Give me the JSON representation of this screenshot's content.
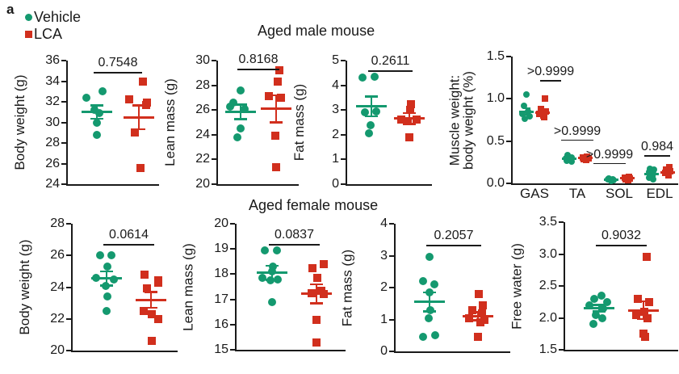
{
  "panel_label": "a",
  "legend": {
    "items": [
      {
        "label": "Vehicle",
        "marker": "circle",
        "color": "#14996f"
      },
      {
        "label": "LCA",
        "marker": "square",
        "color": "#d12f1d"
      }
    ]
  },
  "sections": [
    {
      "title": "Aged male mouse"
    },
    {
      "title": "Aged female mouse"
    }
  ],
  "colors": {
    "vehicle": "#14996f",
    "lca": "#d12f1d",
    "axis": "#1a1a1a"
  },
  "chart_data": [
    {
      "id": "male-body-weight",
      "type": "scatter",
      "section": "Aged male mouse",
      "title": "",
      "xlabel": "",
      "ylabel": "Body weight (g)",
      "ylim": [
        24,
        36
      ],
      "yticks": [
        "24",
        "26",
        "28",
        "30",
        "32",
        "34",
        "36"
      ],
      "p_value": "0.7548",
      "series": [
        {
          "name": "Vehicle",
          "values": [
            32.4,
            33.0,
            31.2,
            30.9,
            30.0,
            28.8
          ],
          "dx": [
            -13,
            7,
            -3,
            3,
            0,
            0
          ],
          "mean": 31.0,
          "sem": 0.65
        },
        {
          "name": "LCA",
          "values": [
            34.0,
            32.2,
            31.9,
            31.7,
            29.0,
            25.6
          ],
          "dx": [
            5,
            -12,
            10,
            9,
            -5,
            2
          ],
          "mean": 30.5,
          "sem": 1.15
        }
      ]
    },
    {
      "id": "male-lean-mass",
      "type": "scatter",
      "section": "Aged male mouse",
      "title": "",
      "xlabel": "",
      "ylabel": "Lean mass (g)",
      "ylim": [
        20,
        30
      ],
      "yticks": [
        "20",
        "22",
        "24",
        "26",
        "28",
        "30"
      ],
      "p_value": "0.8168",
      "series": [
        {
          "name": "Vehicle",
          "values": [
            27.6,
            26.6,
            26.3,
            26.1,
            24.5,
            23.8
          ],
          "dx": [
            0,
            -9,
            -13,
            5,
            0,
            -4
          ],
          "mean": 25.85,
          "sem": 0.6
        },
        {
          "name": "LCA",
          "values": [
            29.2,
            28.3,
            27.1,
            27.0,
            23.9,
            21.4
          ],
          "dx": [
            4,
            2,
            -9,
            6,
            -1,
            0
          ],
          "mean": 26.1,
          "sem": 1.1
        }
      ]
    },
    {
      "id": "male-fat-mass",
      "type": "scatter",
      "section": "Aged male mouse",
      "title": "",
      "xlabel": "",
      "ylabel": "Fat mass (g)",
      "ylim": [
        0,
        5
      ],
      "yticks": [
        "0",
        "1",
        "2",
        "3",
        "4",
        "5"
      ],
      "p_value": "0.2611",
      "series": [
        {
          "name": "Vehicle",
          "values": [
            4.35,
            4.3,
            2.95,
            2.9,
            2.4,
            2.05
          ],
          "dx": [
            4,
            -11,
            6,
            -8,
            -1,
            -3
          ],
          "mean": 3.15,
          "sem": 0.4
        },
        {
          "name": "LCA",
          "values": [
            3.25,
            3.0,
            2.6,
            2.6,
            2.55,
            1.9
          ],
          "dx": [
            2,
            1,
            -10,
            9,
            -2,
            0
          ],
          "mean": 2.65,
          "sem": 0.22
        }
      ]
    },
    {
      "id": "male-muscle-ratio",
      "type": "scatter-grouped",
      "section": "Aged male mouse",
      "title": "",
      "xlabel": "",
      "ylabel": [
        "Muscle weight:",
        "body weight (%)"
      ],
      "ylim": [
        0,
        1.5
      ],
      "yticks": [
        "0.0",
        "0.5",
        "1.0",
        "1.5"
      ],
      "categories": [
        "GAS",
        "TA",
        "SOL",
        "EDL"
      ],
      "p_values": [
        ">0.9999",
        ">0.9999",
        ">0.9999",
        "0.984"
      ],
      "p_label_y": [
        1.22,
        0.52,
        0.24,
        0.33
      ],
      "series": [
        {
          "name": "Vehicle",
          "groups": [
            {
              "values": [
                1.05,
                0.92,
                0.85,
                0.82,
                0.79,
                0.76
              ],
              "dx": [
                0,
                -3,
                2,
                -5,
                4,
                -2
              ],
              "mean": 0.85,
              "sem": 0.04
            },
            {
              "values": [
                0.33,
                0.31,
                0.3,
                0.28,
                0.27,
                0.26
              ],
              "dx": [
                -2,
                3,
                -4,
                2,
                -3,
                3
              ],
              "mean": 0.29,
              "sem": 0.012
            },
            {
              "values": [
                0.06,
                0.05,
                0.05,
                0.04,
                0.03
              ],
              "dx": [
                -3,
                2,
                -4,
                3,
                0
              ],
              "mean": 0.045,
              "sem": 0.006
            },
            {
              "values": [
                0.17,
                0.16,
                0.13,
                0.11,
                0.07,
                0.05
              ],
              "dx": [
                -2,
                3,
                -3,
                2,
                -3,
                2
              ],
              "mean": 0.11,
              "sem": 0.02
            }
          ]
        },
        {
          "name": "LCA",
          "groups": [
            {
              "values": [
                1.0,
                0.88,
                0.85,
                0.82,
                0.8,
                0.78
              ],
              "dx": [
                3,
                -2,
                4,
                -4,
                1,
                2
              ],
              "mean": 0.84,
              "sem": 0.035
            },
            {
              "values": [
                0.32,
                0.31,
                0.3,
                0.29,
                0.28
              ],
              "dx": [
                2,
                -3,
                4,
                -2,
                1
              ],
              "mean": 0.3,
              "sem": 0.01
            },
            {
              "values": [
                0.08,
                0.07,
                0.06,
                0.05,
                0.04
              ],
              "dx": [
                2,
                -3,
                3,
                -2,
                1
              ],
              "mean": 0.06,
              "sem": 0.007
            },
            {
              "values": [
                0.19,
                0.16,
                0.14,
                0.12,
                0.1
              ],
              "dx": [
                2,
                -2,
                3,
                -3,
                1
              ],
              "mean": 0.13,
              "sem": 0.012
            }
          ]
        }
      ]
    },
    {
      "id": "female-body-weight",
      "type": "scatter",
      "section": "Aged female mouse",
      "title": "",
      "xlabel": "",
      "ylabel": "Body weight (g)",
      "ylim": [
        20,
        28
      ],
      "yticks": [
        "20",
        "22",
        "24",
        "26",
        "28"
      ],
      "p_value": "0.0614",
      "series": [
        {
          "name": "Vehicle",
          "values": [
            26.0,
            26.0,
            25.3,
            24.6,
            24.5,
            24.1,
            23.4,
            22.5
          ],
          "dx": [
            -8,
            6,
            1,
            -13,
            9,
            -1,
            1,
            0
          ],
          "mean": 24.55,
          "sem": 0.45
        },
        {
          "name": "LCA",
          "values": [
            24.8,
            24.45,
            24.3,
            23.9,
            22.5,
            22.3,
            22.0,
            20.6
          ],
          "dx": [
            -8,
            9,
            9,
            -5,
            -9,
            1,
            9,
            1
          ],
          "mean": 23.2,
          "sem": 0.5
        }
      ]
    },
    {
      "id": "female-lean-mass",
      "type": "scatter",
      "section": "Aged female mouse",
      "title": "",
      "xlabel": "",
      "ylabel": "Lean mass (g)",
      "ylim": [
        15,
        20
      ],
      "yticks": [
        "15",
        "16",
        "17",
        "18",
        "19",
        "20"
      ],
      "p_value": "0.0837",
      "series": [
        {
          "name": "Vehicle",
          "values": [
            18.95,
            18.95,
            18.3,
            18.1,
            17.85,
            17.8,
            17.75,
            16.9
          ],
          "dx": [
            -9,
            6,
            1,
            0,
            -12,
            7,
            -2,
            0
          ],
          "mean": 18.05,
          "sem": 0.28
        },
        {
          "name": "LCA",
          "values": [
            18.4,
            18.25,
            17.85,
            17.35,
            17.25,
            17.2,
            16.2,
            15.3
          ],
          "dx": [
            9,
            -5,
            1,
            6,
            -6,
            9,
            0,
            0
          ],
          "mean": 17.22,
          "sem": 0.38
        }
      ]
    },
    {
      "id": "female-fat-mass",
      "type": "scatter",
      "section": "Aged female mouse",
      "title": "",
      "xlabel": "",
      "ylabel": "Fat mass (g)",
      "ylim": [
        0,
        4
      ],
      "yticks": [
        "0",
        "1",
        "2",
        "3",
        "4"
      ],
      "p_value": "0.2057",
      "series": [
        {
          "name": "Vehicle",
          "values": [
            2.95,
            2.2,
            2.1,
            1.85,
            1.3,
            1.05,
            0.5,
            0.45
          ],
          "dx": [
            0,
            -8,
            6,
            0,
            1,
            -1,
            7,
            -8
          ],
          "mean": 1.55,
          "sem": 0.3
        },
        {
          "name": "LCA",
          "values": [
            1.8,
            1.45,
            1.3,
            1.2,
            1.05,
            1.0,
            0.9,
            0.45
          ],
          "dx": [
            1,
            6,
            -7,
            5,
            -11,
            8,
            3,
            0
          ],
          "mean": 1.1,
          "sem": 0.13
        }
      ]
    },
    {
      "id": "female-free-water",
      "type": "scatter",
      "section": "Aged female mouse",
      "title": "",
      "xlabel": "",
      "ylabel": "Free water (g)",
      "ylim": [
        1.5,
        3.5
      ],
      "yticks": [
        "1.5",
        "2.0",
        "2.5",
        "3.0",
        "3.5"
      ],
      "p_value": "0.9032",
      "series": [
        {
          "name": "Vehicle",
          "values": [
            2.35,
            2.3,
            2.25,
            2.2,
            2.15,
            2.05,
            2.0,
            1.9
          ],
          "dx": [
            3,
            -6,
            10,
            -12,
            5,
            -4,
            4,
            -7
          ],
          "mean": 2.15,
          "sem": 0.05
        },
        {
          "name": "LCA",
          "values": [
            2.95,
            2.3,
            2.25,
            2.1,
            2.05,
            2.0,
            1.75,
            1.7
          ],
          "dx": [
            4,
            -7,
            7,
            1,
            -9,
            5,
            0,
            2
          ],
          "mean": 2.12,
          "sem": 0.14
        }
      ]
    }
  ]
}
